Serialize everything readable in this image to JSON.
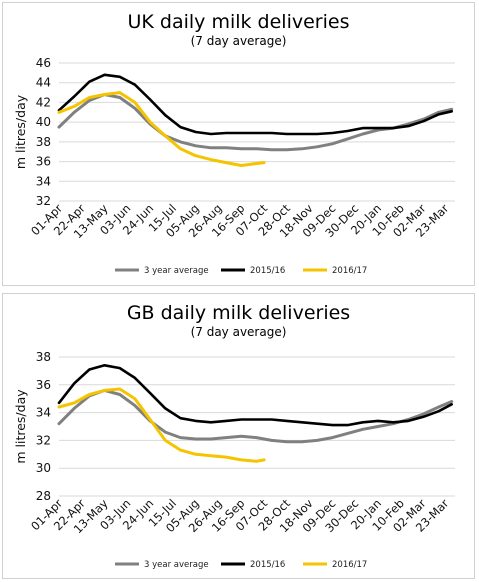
{
  "colors": {
    "avg3": "#808080",
    "y2015": "#000000",
    "y2016": "#f5c400",
    "grid": "#d9d9d9"
  },
  "charts": [
    {
      "title": "UK daily milk deliveries",
      "subtitle": "(7 day average)",
      "ylabel": "m litres/day",
      "legend": [
        "3 year average",
        "2015/16",
        "2016/17"
      ]
    },
    {
      "title": "GB daily milk deliveries",
      "subtitle": "(7 day average)",
      "ylabel": "m litres/day",
      "legend": [
        "3 year average",
        "2015/16",
        "2016/17"
      ]
    }
  ],
  "chart_data": [
    {
      "type": "line",
      "title": "UK daily milk deliveries",
      "subtitle": "(7 day average)",
      "ylabel": "m litres/day",
      "ylim": [
        32,
        46
      ],
      "yticks": [
        32,
        34,
        36,
        38,
        40,
        42,
        44,
        46
      ],
      "grid": true,
      "legend_position": "bottom",
      "x_tick_labels": [
        "01-Apr",
        "22-Apr",
        "13-May",
        "03-Jun",
        "24-Jun",
        "15-Jul",
        "05-Aug",
        "26-Aug",
        "16-Sep",
        "07-Oct",
        "28-Oct",
        "18-Nov",
        "09-Dec",
        "30-Dec",
        "20-Jan",
        "10-Feb",
        "02-Mar",
        "23-Mar"
      ],
      "x_day_offsets": [
        0,
        21,
        42,
        63,
        84,
        105,
        126,
        147,
        168,
        189,
        210,
        231,
        252,
        273,
        294,
        315,
        335,
        356
      ],
      "series": [
        {
          "name": "3 year average",
          "x": [
            0,
            14,
            28,
            42,
            56,
            70,
            84,
            98,
            112,
            126,
            140,
            154,
            168,
            182,
            196,
            210,
            224,
            238,
            252,
            266,
            280,
            294,
            308,
            322,
            336,
            350,
            362
          ],
          "values": [
            39.5,
            41.0,
            42.2,
            42.8,
            42.5,
            41.4,
            39.8,
            38.6,
            38.0,
            37.6,
            37.4,
            37.4,
            37.3,
            37.3,
            37.2,
            37.2,
            37.3,
            37.5,
            37.8,
            38.3,
            38.8,
            39.2,
            39.4,
            39.8,
            40.3,
            41.0,
            41.3
          ]
        },
        {
          "name": "2015/16",
          "x": [
            0,
            14,
            28,
            42,
            56,
            70,
            84,
            98,
            112,
            126,
            140,
            154,
            168,
            182,
            196,
            210,
            224,
            238,
            252,
            266,
            280,
            294,
            308,
            322,
            336,
            350,
            362
          ],
          "values": [
            41.2,
            42.6,
            44.1,
            44.8,
            44.6,
            43.8,
            42.3,
            40.7,
            39.5,
            39.0,
            38.8,
            38.9,
            38.9,
            38.9,
            38.9,
            38.8,
            38.8,
            38.8,
            38.9,
            39.1,
            39.4,
            39.4,
            39.4,
            39.6,
            40.1,
            40.8,
            41.1
          ]
        },
        {
          "name": "2016/17",
          "x": [
            0,
            14,
            28,
            42,
            56,
            70,
            84,
            98,
            112,
            126,
            140,
            154,
            168,
            182,
            189
          ],
          "values": [
            41.0,
            41.6,
            42.5,
            42.8,
            43.0,
            42.0,
            40.0,
            38.6,
            37.3,
            36.6,
            36.2,
            35.9,
            35.6,
            35.8,
            35.9
          ]
        }
      ]
    },
    {
      "type": "line",
      "title": "GB daily milk deliveries",
      "subtitle": "(7 day average)",
      "ylabel": "m litres/day",
      "ylim": [
        28,
        38
      ],
      "yticks": [
        28,
        30,
        32,
        34,
        36,
        38
      ],
      "grid": true,
      "legend_position": "bottom",
      "x_tick_labels": [
        "01-Apr",
        "22-Apr",
        "13-May",
        "03-Jun",
        "24-Jun",
        "15-Jul",
        "05-Aug",
        "26-Aug",
        "16-Sep",
        "07-Oct",
        "28-Oct",
        "18-Nov",
        "09-Dec",
        "30-Dec",
        "20-Jan",
        "10-Feb",
        "02-Mar",
        "23-Mar"
      ],
      "x_day_offsets": [
        0,
        21,
        42,
        63,
        84,
        105,
        126,
        147,
        168,
        189,
        210,
        231,
        252,
        273,
        294,
        315,
        335,
        356
      ],
      "series": [
        {
          "name": "3 year average",
          "x": [
            0,
            14,
            28,
            42,
            56,
            70,
            84,
            98,
            112,
            126,
            140,
            154,
            168,
            182,
            196,
            210,
            224,
            238,
            252,
            266,
            280,
            294,
            308,
            322,
            336,
            350,
            362
          ],
          "values": [
            33.2,
            34.3,
            35.2,
            35.6,
            35.3,
            34.5,
            33.4,
            32.6,
            32.2,
            32.1,
            32.1,
            32.2,
            32.3,
            32.2,
            32.0,
            31.9,
            31.9,
            32.0,
            32.2,
            32.5,
            32.8,
            33.0,
            33.2,
            33.5,
            33.9,
            34.4,
            34.8
          ]
        },
        {
          "name": "2015/16",
          "x": [
            0,
            14,
            28,
            42,
            56,
            70,
            84,
            98,
            112,
            126,
            140,
            154,
            168,
            182,
            196,
            210,
            224,
            238,
            252,
            266,
            280,
            294,
            308,
            322,
            336,
            350,
            362
          ],
          "values": [
            34.7,
            36.1,
            37.1,
            37.4,
            37.2,
            36.5,
            35.4,
            34.3,
            33.6,
            33.4,
            33.3,
            33.4,
            33.5,
            33.5,
            33.5,
            33.4,
            33.3,
            33.2,
            33.1,
            33.1,
            33.3,
            33.4,
            33.3,
            33.4,
            33.7,
            34.1,
            34.6
          ]
        },
        {
          "name": "2016/17",
          "x": [
            0,
            14,
            28,
            42,
            56,
            70,
            84,
            98,
            112,
            126,
            140,
            154,
            168,
            182,
            189
          ],
          "values": [
            34.4,
            34.7,
            35.3,
            35.6,
            35.7,
            35.0,
            33.5,
            32.0,
            31.3,
            31.0,
            30.9,
            30.8,
            30.6,
            30.5,
            30.6
          ]
        }
      ]
    }
  ]
}
